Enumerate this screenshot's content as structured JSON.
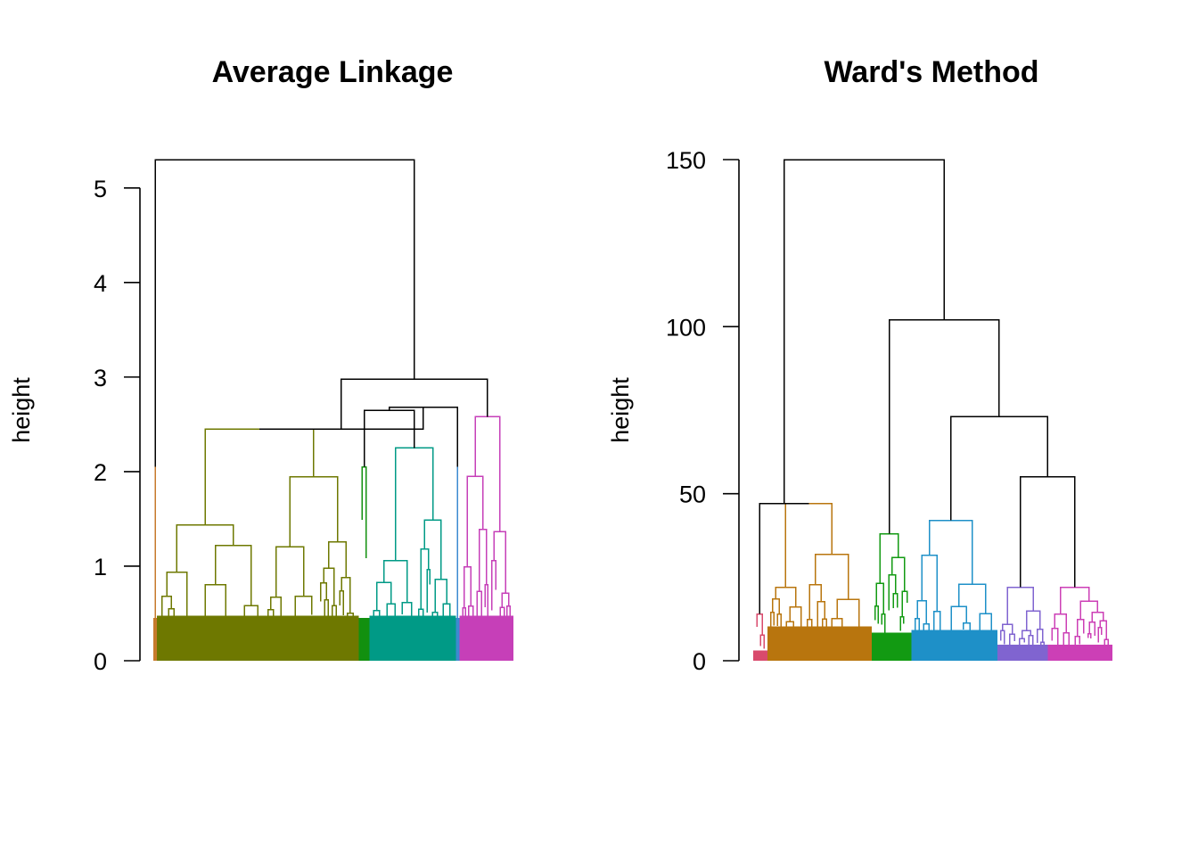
{
  "chart_data": [
    {
      "type": "dendrogram",
      "title": "Average Linkage",
      "ylabel": "height",
      "ylim": [
        0,
        5.3
      ],
      "yticks": [
        0,
        1,
        2,
        3,
        4,
        5
      ],
      "top_merge_height": 5.3,
      "colors": {
        "merge": "#000000",
        "clusters": [
          "#C77A2C",
          "#6E7800",
          "#12900F",
          "#009A86",
          "#3C8AD0",
          "#C63FB8"
        ]
      },
      "clusters": [
        {
          "color": "#C77A2C",
          "leaf_share": 0.01,
          "height": 2.05
        },
        {
          "color": "#6E7800",
          "leaf_share": 0.56,
          "height": 2.45
        },
        {
          "color": "#12900F",
          "leaf_share": 0.03,
          "height": 2.05
        },
        {
          "color": "#009A86",
          "leaf_share": 0.24,
          "height": 2.25
        },
        {
          "color": "#3C8AD0",
          "leaf_share": 0.01,
          "height": 2.05
        },
        {
          "color": "#C63FB8",
          "leaf_share": 0.15,
          "height": 2.58
        }
      ],
      "merges": [
        {
          "height": 2.65,
          "joins": [
            "green + teal",
            "blue"
          ]
        },
        {
          "height": 2.45,
          "joins": [
            "olive",
            "green + teal + blue"
          ]
        },
        {
          "height": 2.98,
          "joins": [
            "olive + green + teal + blue",
            "magenta"
          ]
        },
        {
          "height": 5.3,
          "joins": [
            "orange",
            "all others"
          ]
        }
      ]
    },
    {
      "type": "dendrogram",
      "title": "Ward's Method",
      "ylabel": "height",
      "ylim": [
        0,
        150
      ],
      "yticks": [
        0,
        50,
        100,
        150
      ],
      "top_merge_height": 150,
      "colors": {
        "merge": "#000000",
        "clusters": [
          "#D94A6C",
          "#B8750E",
          "#129A12",
          "#1E90C8",
          "#8064D0",
          "#CC3FB6"
        ]
      },
      "clusters": [
        {
          "color": "#D94A6C",
          "leaf_share": 0.04,
          "height": 14
        },
        {
          "color": "#B8750E",
          "leaf_share": 0.29,
          "height": 47
        },
        {
          "color": "#129A12",
          "leaf_share": 0.11,
          "height": 38
        },
        {
          "color": "#1E90C8",
          "leaf_share": 0.24,
          "height": 42
        },
        {
          "color": "#8064D0",
          "leaf_share": 0.14,
          "height": 22
        },
        {
          "color": "#CC3FB6",
          "leaf_share": 0.18,
          "height": 22
        }
      ],
      "merges": [
        {
          "height": 47,
          "joins": [
            "red",
            "orange"
          ]
        },
        {
          "height": 55,
          "joins": [
            "purple",
            "magenta"
          ]
        },
        {
          "height": 73,
          "joins": [
            "blue",
            "purple + magenta"
          ]
        },
        {
          "height": 102,
          "joins": [
            "green",
            "blue + purple + magenta"
          ]
        },
        {
          "height": 150,
          "joins": [
            "red + orange",
            "green + blue + purple + magenta"
          ]
        }
      ]
    }
  ]
}
